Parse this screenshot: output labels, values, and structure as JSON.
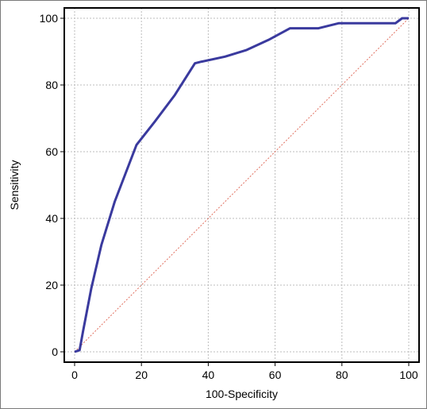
{
  "chart_data": {
    "type": "line",
    "title": "",
    "xlabel": "100-Specificity",
    "ylabel": "Sensitivity",
    "xlim": [
      0,
      100
    ],
    "ylim": [
      0,
      100
    ],
    "x_ticks": [
      "0",
      "20",
      "40",
      "60",
      "80",
      "100"
    ],
    "y_ticks": [
      "0",
      "20",
      "40",
      "60",
      "80",
      "100"
    ],
    "grid": true,
    "series": [
      {
        "x": [
          0,
          1.5,
          2.5,
          5,
          8,
          12,
          18.5,
          24,
          30,
          36,
          38,
          45,
          51.5,
          58,
          64.5,
          73,
          79,
          87,
          96,
          98,
          100
        ],
        "y": [
          0,
          0.5,
          6,
          19,
          32,
          45,
          62,
          69,
          77,
          86.5,
          87,
          88.5,
          90.5,
          93.5,
          97,
          97,
          98.5,
          98.5,
          98.5,
          100,
          100
        ],
        "color": "#3a3a9e"
      },
      {
        "x": [
          0,
          100
        ],
        "y": [
          0,
          100
        ],
        "color": "#e07060",
        "style": "dotted"
      }
    ]
  }
}
